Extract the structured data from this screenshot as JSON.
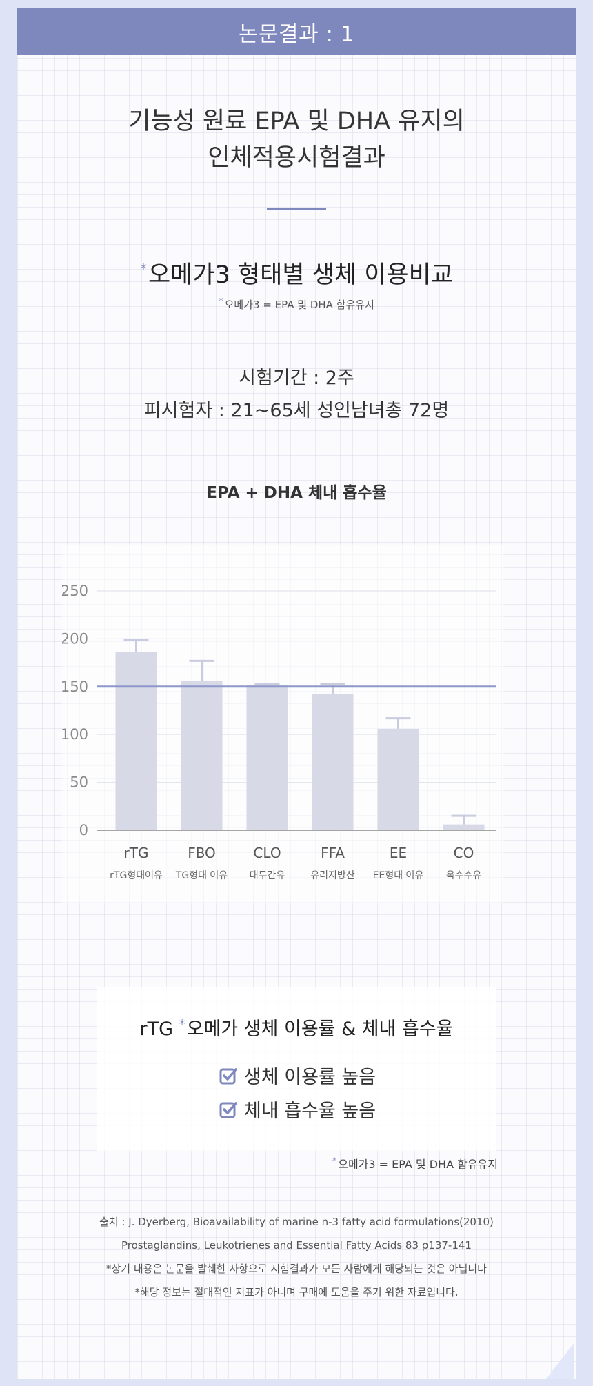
{
  "header": {
    "title": "논문결과 : 1"
  },
  "intro": {
    "title_line1": "기능성 원료 EPA 및 DHA 유지의",
    "title_line2": "인체적용시험결과"
  },
  "section": {
    "subtitle_star": "*",
    "subtitle": "오메가3 형태별 생체 이용비교",
    "note_star": "*",
    "note": "오메가3 = EPA 및 DHA 함유유지"
  },
  "study": {
    "period": "시험기간 : 2주",
    "subjects": "피시험자 : 21~65세 성인남녀총 72명"
  },
  "chart_data": {
    "type": "bar",
    "title": "EPA + DHA 체내 흡수율",
    "categories": [
      "rTG",
      "FBO",
      "CLO",
      "FFA",
      "EE",
      "CO"
    ],
    "category_sublabels": [
      "rTG형태어유",
      "TG형태 어유",
      "대두간유",
      "유리지방산",
      "EE형태 어유",
      "옥수수유"
    ],
    "values": [
      186,
      156,
      152,
      142,
      106,
      6
    ],
    "error_upper": [
      199,
      177,
      153,
      153,
      117,
      15
    ],
    "ylim": [
      0,
      250
    ],
    "yticks": [
      0,
      50,
      100,
      150,
      200,
      250
    ],
    "reference_line": 150,
    "grid": true,
    "colors": {
      "bar": "#d7d9e7",
      "error": "#c9ccdf",
      "reference": "#8e97c9",
      "grid": "#e4e6ee",
      "axis": "#888888",
      "tick_label": "#888888"
    }
  },
  "summary": {
    "title_prefix": "rTG ",
    "title_star": "*",
    "title_rest": "오메가 생체 이용률 & 체내 흡수율",
    "items": [
      "생체 이용률 높음",
      "체내 흡수율 높음"
    ],
    "icon": "checkbox-checked-icon",
    "check_color": "#7e88bd"
  },
  "footnote": {
    "star": "*",
    "text": "오메가3 = EPA 및 DHA 함유유지"
  },
  "references": [
    "출처 : J. Dyerberg, Bioavailability of marine n-3 fatty acid formulations(2010)",
    "Prostaglandins, Leukotrienes and Essential Fatty Acids 83 p137-141",
    "*상기 내용은 논문을 발췌한 사항으로 시험결과가 모든 사람에게 해당되는 것은 아닙니다",
    "*해당 정보는 절대적인 지표가 아니며 구매에 도움을 주기 위한 자료입니다."
  ],
  "colors": {
    "accent": "#7e88bd",
    "background": "#dfe3f6"
  }
}
